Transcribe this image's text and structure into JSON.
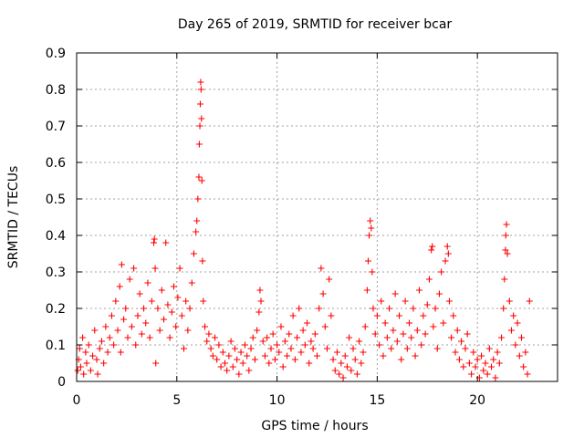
{
  "chart_data": {
    "type": "scatter",
    "title": "Day 265 of 2019, SRMTID for receiver bcar",
    "xlabel": "GPS time / hours",
    "ylabel": "SRMTID / TECUs",
    "xlim": [
      0,
      24
    ],
    "ylim": [
      0,
      0.9
    ],
    "xticks": [
      0,
      5,
      10,
      15,
      20
    ],
    "xtick_labels": [
      "0",
      "5",
      "10",
      "15",
      "20"
    ],
    "yticks": [
      0,
      0.1,
      0.2,
      0.3,
      0.4,
      0.5,
      0.6,
      0.7,
      0.8,
      0.9
    ],
    "ytick_labels": [
      "0",
      "0.1",
      "0.2",
      "0.3",
      "0.4",
      "0.5",
      "0.6",
      "0.7",
      "0.8",
      "0.9"
    ],
    "grid": true,
    "marker": "plus",
    "color": "#ff0000",
    "series": [
      {
        "name": "SRMTID",
        "points": [
          [
            0.05,
            0.03
          ],
          [
            0.1,
            0.06
          ],
          [
            0.15,
            0.09
          ],
          [
            0.2,
            0.04
          ],
          [
            0.3,
            0.12
          ],
          [
            0.35,
            0.02
          ],
          [
            0.45,
            0.08
          ],
          [
            0.5,
            0.05
          ],
          [
            0.6,
            0.1
          ],
          [
            0.7,
            0.03
          ],
          [
            0.8,
            0.07
          ],
          [
            0.9,
            0.14
          ],
          [
            1.0,
            0.06
          ],
          [
            1.05,
            0.02
          ],
          [
            1.15,
            0.09
          ],
          [
            1.25,
            0.11
          ],
          [
            1.35,
            0.05
          ],
          [
            1.45,
            0.15
          ],
          [
            1.55,
            0.08
          ],
          [
            1.65,
            0.12
          ],
          [
            1.75,
            0.18
          ],
          [
            1.85,
            0.1
          ],
          [
            1.95,
            0.22
          ],
          [
            2.05,
            0.14
          ],
          [
            2.15,
            0.26
          ],
          [
            2.2,
            0.08
          ],
          [
            2.25,
            0.32
          ],
          [
            2.35,
            0.17
          ],
          [
            2.45,
            0.2
          ],
          [
            2.55,
            0.12
          ],
          [
            2.65,
            0.28
          ],
          [
            2.75,
            0.15
          ],
          [
            2.85,
            0.31
          ],
          [
            2.95,
            0.1
          ],
          [
            3.05,
            0.18
          ],
          [
            3.15,
            0.24
          ],
          [
            3.25,
            0.13
          ],
          [
            3.35,
            0.2
          ],
          [
            3.45,
            0.16
          ],
          [
            3.55,
            0.27
          ],
          [
            3.65,
            0.12
          ],
          [
            3.75,
            0.22
          ],
          [
            3.85,
            0.38
          ],
          [
            3.88,
            0.39
          ],
          [
            3.92,
            0.31
          ],
          [
            3.95,
            0.05
          ],
          [
            4.05,
            0.2
          ],
          [
            4.15,
            0.14
          ],
          [
            4.25,
            0.25
          ],
          [
            4.35,
            0.17
          ],
          [
            4.45,
            0.38
          ],
          [
            4.55,
            0.21
          ],
          [
            4.65,
            0.12
          ],
          [
            4.75,
            0.19
          ],
          [
            4.85,
            0.26
          ],
          [
            4.95,
            0.15
          ],
          [
            5.05,
            0.23
          ],
          [
            5.15,
            0.31
          ],
          [
            5.25,
            0.18
          ],
          [
            5.35,
            0.09
          ],
          [
            5.45,
            0.22
          ],
          [
            5.55,
            0.14
          ],
          [
            5.65,
            0.2
          ],
          [
            5.75,
            0.27
          ],
          [
            5.85,
            0.35
          ],
          [
            5.95,
            0.41
          ],
          [
            6.0,
            0.44
          ],
          [
            6.05,
            0.5
          ],
          [
            6.1,
            0.56
          ],
          [
            6.12,
            0.65
          ],
          [
            6.15,
            0.7
          ],
          [
            6.17,
            0.76
          ],
          [
            6.19,
            0.82
          ],
          [
            6.21,
            0.8
          ],
          [
            6.23,
            0.72
          ],
          [
            6.25,
            0.55
          ],
          [
            6.28,
            0.33
          ],
          [
            6.32,
            0.22
          ],
          [
            6.4,
            0.15
          ],
          [
            6.5,
            0.11
          ],
          [
            6.6,
            0.13
          ],
          [
            6.7,
            0.09
          ],
          [
            6.8,
            0.07
          ],
          [
            6.9,
            0.12
          ],
          [
            7.0,
            0.06
          ],
          [
            7.1,
            0.1
          ],
          [
            7.2,
            0.04
          ],
          [
            7.3,
            0.08
          ],
          [
            7.4,
            0.05
          ],
          [
            7.5,
            0.03
          ],
          [
            7.6,
            0.07
          ],
          [
            7.7,
            0.11
          ],
          [
            7.8,
            0.04
          ],
          [
            7.9,
            0.09
          ],
          [
            8.0,
            0.06
          ],
          [
            8.1,
            0.02
          ],
          [
            8.2,
            0.08
          ],
          [
            8.3,
            0.05
          ],
          [
            8.4,
            0.1
          ],
          [
            8.5,
            0.07
          ],
          [
            8.6,
            0.03
          ],
          [
            8.7,
            0.09
          ],
          [
            8.8,
            0.12
          ],
          [
            8.9,
            0.06
          ],
          [
            9.0,
            0.14
          ],
          [
            9.1,
            0.19
          ],
          [
            9.15,
            0.25
          ],
          [
            9.2,
            0.22
          ],
          [
            9.3,
            0.11
          ],
          [
            9.4,
            0.07
          ],
          [
            9.5,
            0.12
          ],
          [
            9.6,
            0.05
          ],
          [
            9.7,
            0.09
          ],
          [
            9.8,
            0.13
          ],
          [
            9.9,
            0.06
          ],
          [
            10.0,
            0.1
          ],
          [
            10.1,
            0.08
          ],
          [
            10.2,
            0.15
          ],
          [
            10.3,
            0.04
          ],
          [
            10.4,
            0.11
          ],
          [
            10.5,
            0.07
          ],
          [
            10.6,
            0.13
          ],
          [
            10.7,
            0.09
          ],
          [
            10.8,
            0.18
          ],
          [
            10.9,
            0.06
          ],
          [
            11.0,
            0.12
          ],
          [
            11.1,
            0.2
          ],
          [
            11.2,
            0.08
          ],
          [
            11.3,
            0.14
          ],
          [
            11.4,
            0.1
          ],
          [
            11.5,
            0.16
          ],
          [
            11.6,
            0.05
          ],
          [
            11.7,
            0.11
          ],
          [
            11.8,
            0.09
          ],
          [
            11.9,
            0.13
          ],
          [
            12.0,
            0.07
          ],
          [
            12.1,
            0.2
          ],
          [
            12.2,
            0.31
          ],
          [
            12.3,
            0.24
          ],
          [
            12.4,
            0.15
          ],
          [
            12.5,
            0.09
          ],
          [
            12.6,
            0.28
          ],
          [
            12.7,
            0.18
          ],
          [
            12.8,
            0.06
          ],
          [
            12.9,
            0.03
          ],
          [
            13.0,
            0.08
          ],
          [
            13.1,
            0.02
          ],
          [
            13.2,
            0.05
          ],
          [
            13.3,
            0.01
          ],
          [
            13.4,
            0.07
          ],
          [
            13.5,
            0.04
          ],
          [
            13.6,
            0.12
          ],
          [
            13.7,
            0.03
          ],
          [
            13.8,
            0.09
          ],
          [
            13.9,
            0.06
          ],
          [
            14.0,
            0.02
          ],
          [
            14.1,
            0.11
          ],
          [
            14.2,
            0.05
          ],
          [
            14.3,
            0.08
          ],
          [
            14.4,
            0.15
          ],
          [
            14.5,
            0.25
          ],
          [
            14.55,
            0.33
          ],
          [
            14.6,
            0.4
          ],
          [
            14.65,
            0.44
          ],
          [
            14.7,
            0.42
          ],
          [
            14.75,
            0.3
          ],
          [
            14.8,
            0.2
          ],
          [
            14.9,
            0.13
          ],
          [
            15.0,
            0.18
          ],
          [
            15.1,
            0.1
          ],
          [
            15.2,
            0.22
          ],
          [
            15.3,
            0.07
          ],
          [
            15.4,
            0.16
          ],
          [
            15.5,
            0.12
          ],
          [
            15.6,
            0.2
          ],
          [
            15.7,
            0.09
          ],
          [
            15.8,
            0.14
          ],
          [
            15.9,
            0.24
          ],
          [
            16.0,
            0.11
          ],
          [
            16.1,
            0.18
          ],
          [
            16.2,
            0.06
          ],
          [
            16.3,
            0.13
          ],
          [
            16.4,
            0.22
          ],
          [
            16.5,
            0.09
          ],
          [
            16.6,
            0.16
          ],
          [
            16.7,
            0.12
          ],
          [
            16.8,
            0.2
          ],
          [
            16.9,
            0.07
          ],
          [
            17.0,
            0.14
          ],
          [
            17.1,
            0.25
          ],
          [
            17.2,
            0.1
          ],
          [
            17.3,
            0.18
          ],
          [
            17.4,
            0.13
          ],
          [
            17.5,
            0.21
          ],
          [
            17.6,
            0.28
          ],
          [
            17.7,
            0.36
          ],
          [
            17.75,
            0.37
          ],
          [
            17.8,
            0.15
          ],
          [
            17.9,
            0.2
          ],
          [
            18.0,
            0.09
          ],
          [
            18.1,
            0.24
          ],
          [
            18.2,
            0.3
          ],
          [
            18.3,
            0.16
          ],
          [
            18.4,
            0.33
          ],
          [
            18.5,
            0.37
          ],
          [
            18.55,
            0.35
          ],
          [
            18.6,
            0.22
          ],
          [
            18.7,
            0.12
          ],
          [
            18.8,
            0.18
          ],
          [
            18.9,
            0.08
          ],
          [
            19.0,
            0.14
          ],
          [
            19.1,
            0.06
          ],
          [
            19.2,
            0.11
          ],
          [
            19.3,
            0.04
          ],
          [
            19.4,
            0.09
          ],
          [
            19.5,
            0.13
          ],
          [
            19.6,
            0.05
          ],
          [
            19.7,
            0.02
          ],
          [
            19.8,
            0.08
          ],
          [
            19.9,
            0.04
          ],
          [
            20.0,
            0.06
          ],
          [
            20.1,
            0.01
          ],
          [
            20.2,
            0.07
          ],
          [
            20.3,
            0.03
          ],
          [
            20.4,
            0.05
          ],
          [
            20.5,
            0.02
          ],
          [
            20.6,
            0.09
          ],
          [
            20.7,
            0.04
          ],
          [
            20.8,
            0.06
          ],
          [
            20.9,
            0.01
          ],
          [
            21.0,
            0.08
          ],
          [
            21.1,
            0.05
          ],
          [
            21.2,
            0.12
          ],
          [
            21.3,
            0.2
          ],
          [
            21.35,
            0.28
          ],
          [
            21.4,
            0.36
          ],
          [
            21.42,
            0.4
          ],
          [
            21.45,
            0.43
          ],
          [
            21.5,
            0.35
          ],
          [
            21.6,
            0.22
          ],
          [
            21.7,
            0.14
          ],
          [
            21.8,
            0.18
          ],
          [
            21.9,
            0.1
          ],
          [
            22.0,
            0.16
          ],
          [
            22.1,
            0.07
          ],
          [
            22.2,
            0.12
          ],
          [
            22.3,
            0.04
          ],
          [
            22.4,
            0.08
          ],
          [
            22.5,
            0.02
          ],
          [
            22.6,
            0.22
          ]
        ]
      }
    ]
  }
}
